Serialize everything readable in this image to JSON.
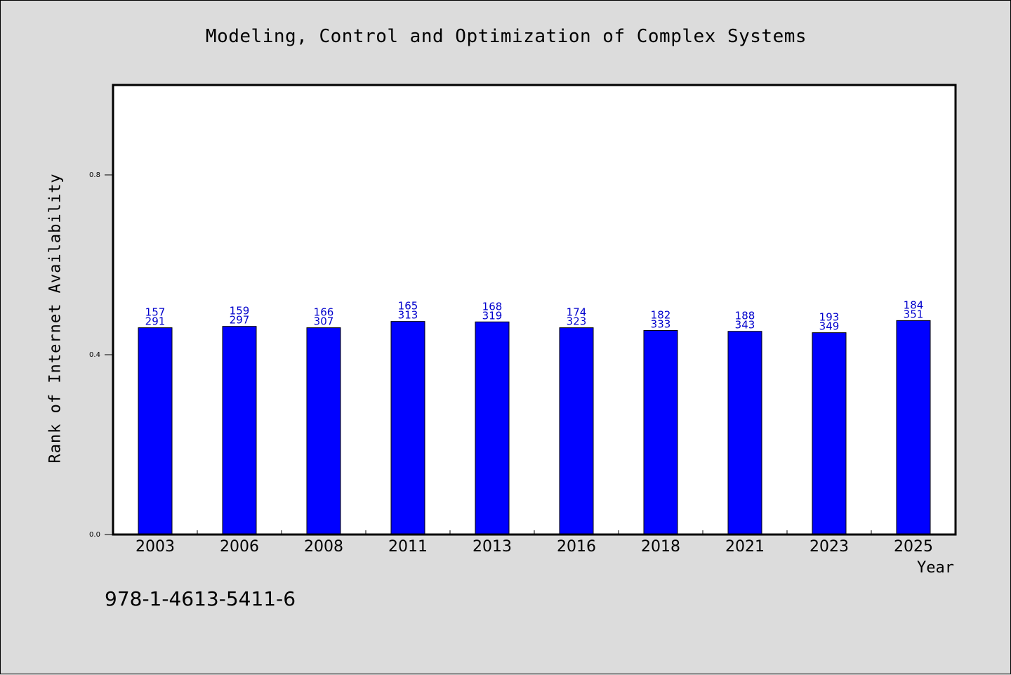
{
  "chart_data": {
    "type": "bar",
    "title": "Modeling, Control and Optimization of Complex Systems",
    "xlabel": "Year",
    "ylabel": "Rank of Internet Availability",
    "footer": "978-1-4613-5411-6",
    "categories": [
      "2003",
      "2006",
      "2008",
      "2011",
      "2013",
      "2016",
      "2018",
      "2021",
      "2023",
      "2025"
    ],
    "values": [
      0.46,
      0.463,
      0.46,
      0.474,
      0.473,
      0.46,
      0.454,
      0.452,
      0.449,
      0.476
    ],
    "label_top": [
      "157",
      "159",
      "166",
      "165",
      "168",
      "174",
      "182",
      "188",
      "193",
      "184"
    ],
    "label_bottom": [
      "291",
      "297",
      "307",
      "313",
      "319",
      "323",
      "333",
      "343",
      "349",
      "351"
    ],
    "yticks": [
      0.0,
      0.4,
      0.8
    ],
    "ytick_labels": [
      "0.0",
      "0.4",
      "0.8"
    ],
    "ylim": [
      0.0,
      1.0
    ],
    "grid": false,
    "legend": "none",
    "colors": {
      "bar": "#0000ff",
      "bar_edge": "#000000",
      "data_label": "#0000cc",
      "background": "#dcdcdc",
      "plot_area": "#ffffff"
    }
  }
}
